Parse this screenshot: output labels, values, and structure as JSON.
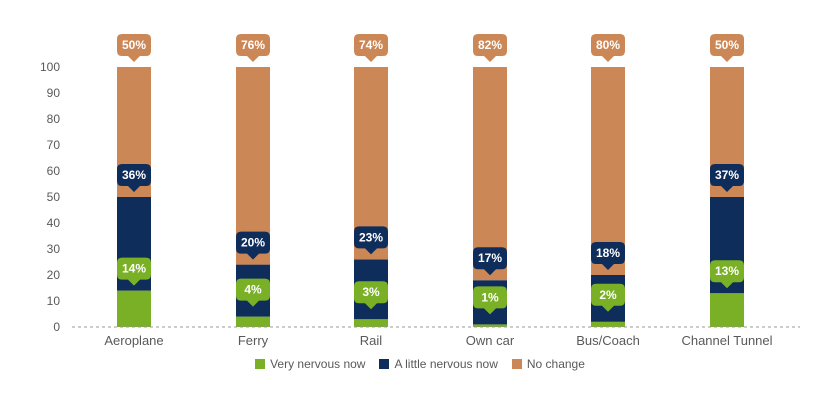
{
  "chart_data": {
    "type": "bar",
    "stacked": true,
    "categories": [
      "Aeroplane",
      "Ferry",
      "Rail",
      "Own car",
      "Bus/Coach",
      "Channel Tunnel"
    ],
    "series": [
      {
        "name": "Very nervous now",
        "color": "#7ab026",
        "values": [
          14,
          4,
          3,
          1,
          2,
          13
        ]
      },
      {
        "name": "A little nervous now",
        "color": "#0f2d5a",
        "values": [
          36,
          20,
          23,
          17,
          18,
          37
        ]
      },
      {
        "name": "No change",
        "color": "#cc8757",
        "values": [
          50,
          76,
          74,
          82,
          80,
          50
        ]
      }
    ],
    "ylim": [
      0,
      100
    ],
    "yticks": [
      "0",
      "10",
      "20",
      "30",
      "40",
      "50",
      "60",
      "70",
      "80",
      "90",
      "100"
    ],
    "legend_position": "bottom",
    "grid": false
  }
}
